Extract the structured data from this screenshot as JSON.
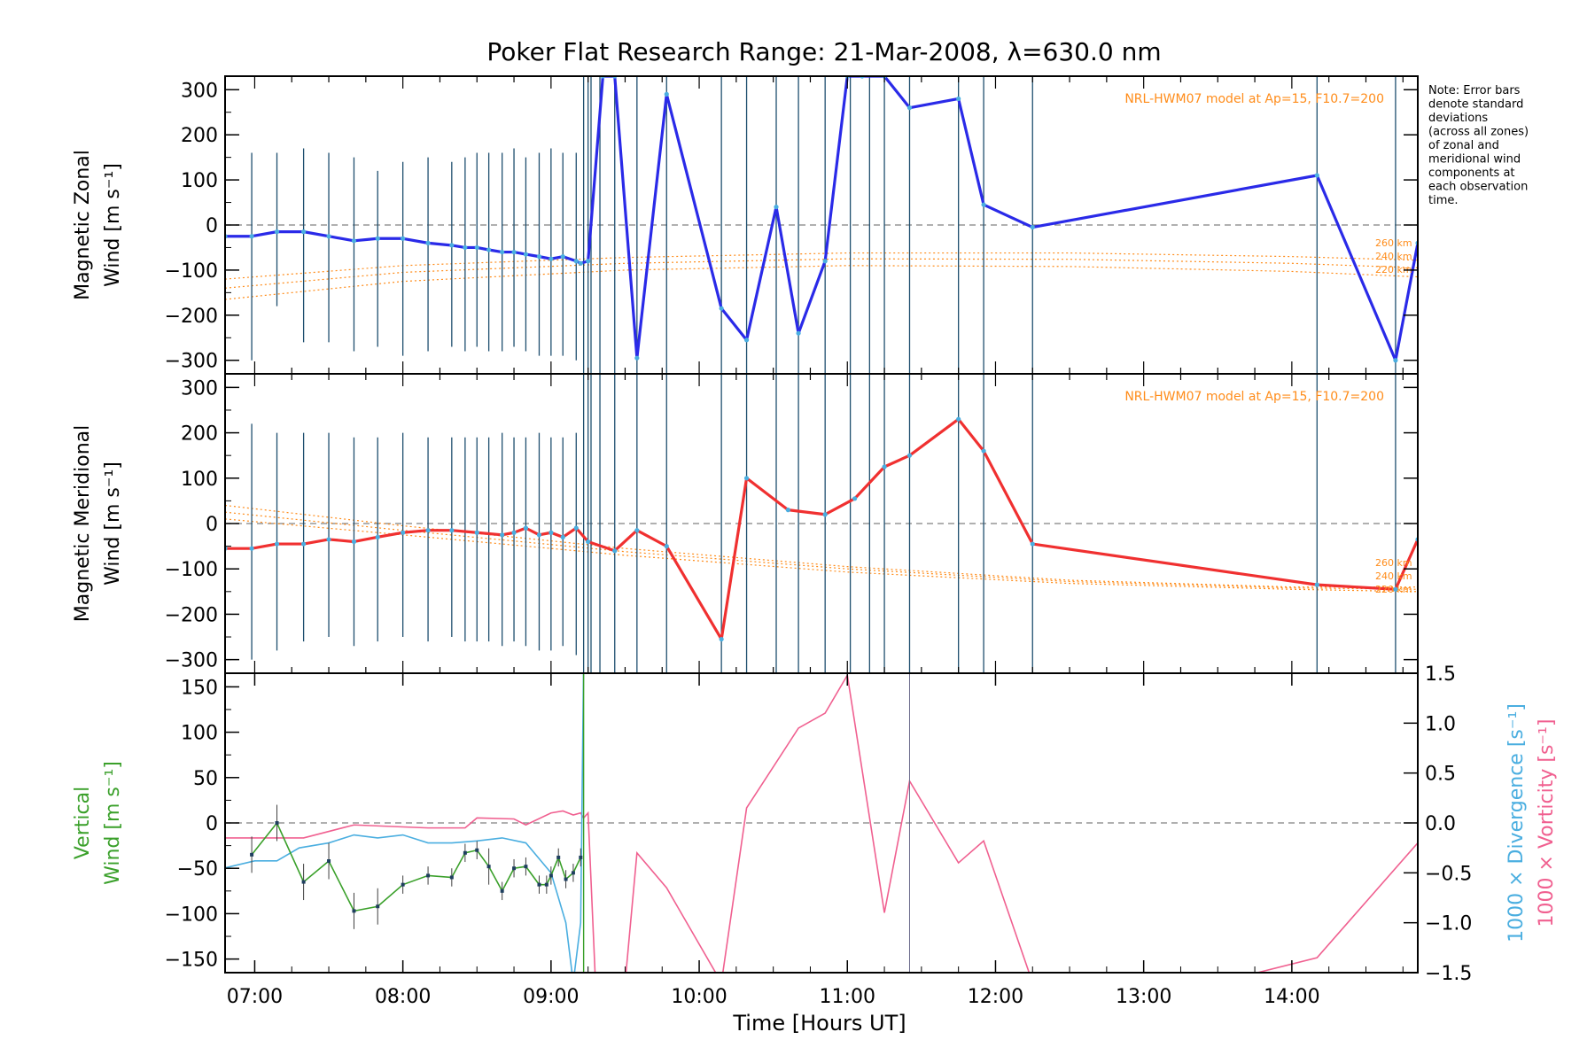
{
  "title": "Poker Flat Research Range: 21-Mar-2008, λ=630.0 nm",
  "note": [
    "Note: Error bars",
    "denote standard",
    "deviations",
    "(across all zones)",
    "of zonal and",
    "meridional wind",
    "components at",
    "each observation",
    "time."
  ],
  "colors": {
    "zonal": "#2a2ae8",
    "meridional": "#f03030",
    "model": "#ff8c1a",
    "vertical": "#3aa02a",
    "divergence": "#4aaee0",
    "vorticity": "#f06090",
    "errorbar": "#1f4f6f",
    "zero": "#808080"
  },
  "chart_data": [
    {
      "type": "line",
      "panel": "zonal",
      "ylabel": [
        "Magnetic Zonal",
        "Wind [m s⁻¹]"
      ],
      "ylim": [
        -330,
        330
      ],
      "xlim": [
        6.8,
        14.85
      ],
      "yticks": [
        -300,
        -200,
        -100,
        0,
        100,
        200,
        300
      ],
      "model_label": "NRL-HWM07 model at Ap=15, F10.7=200",
      "model_altitudes": [
        "260 km",
        "240 km",
        "220 km"
      ],
      "series": [
        {
          "x": [
            6.8,
            6.98,
            7.15,
            7.33,
            7.5,
            7.67,
            7.83,
            8.0,
            8.17,
            8.33,
            8.42,
            8.5,
            8.58,
            8.67,
            8.75,
            8.83,
            8.92,
            9.0,
            9.08,
            9.17,
            9.2,
            9.25,
            9.35,
            9.43,
            9.58,
            9.78,
            10.15,
            10.32,
            10.52,
            10.67,
            10.85,
            11.0,
            11.1,
            11.25,
            11.42,
            11.75,
            11.92,
            12.25,
            14.17,
            14.7,
            14.85
          ],
          "y": [
            -25,
            -25,
            -15,
            -15,
            -25,
            -35,
            -30,
            -30,
            -40,
            -45,
            -50,
            -50,
            -55,
            -60,
            -60,
            -65,
            -70,
            -75,
            -70,
            -80,
            -85,
            -80,
            330,
            330,
            -295,
            290,
            -185,
            -255,
            40,
            -240,
            -80,
            330,
            330,
            330,
            260,
            280,
            45,
            -5,
            110,
            -300,
            -40
          ]
        }
      ],
      "model": [
        {
          "x": [
            6.8,
            8.0,
            9.5,
            11.0,
            12.5,
            14.0,
            14.85
          ],
          "y": [
            -120,
            -90,
            -72,
            -62,
            -62,
            -70,
            -78
          ]
        },
        {
          "x": [
            6.8,
            8.0,
            9.5,
            11.0,
            12.5,
            14.0,
            14.85
          ],
          "y": [
            -140,
            -105,
            -85,
            -75,
            -76,
            -85,
            -95
          ]
        },
        {
          "x": [
            6.8,
            8.0,
            9.5,
            11.0,
            12.5,
            14.0,
            14.85
          ],
          "y": [
            -165,
            -125,
            -100,
            -90,
            -92,
            -103,
            -115
          ]
        }
      ],
      "errorbar_x": [
        6.98,
        7.15,
        7.33,
        7.5,
        7.67,
        7.83,
        8.0,
        8.17,
        8.33,
        8.42,
        8.5,
        8.58,
        8.67,
        8.75,
        8.83,
        8.92,
        9.0,
        9.08,
        9.17,
        9.22,
        9.25,
        9.27,
        9.33,
        9.43,
        9.58,
        9.78,
        10.15,
        10.32,
        10.52,
        10.67,
        10.85,
        11.02,
        11.15,
        11.25,
        11.42,
        11.75,
        11.92,
        12.25,
        14.17,
        14.7
      ],
      "errorbar_lo": [
        -300,
        -180,
        -260,
        -260,
        -280,
        -270,
        -290,
        -280,
        -270,
        -280,
        -270,
        -280,
        -280,
        -270,
        -280,
        -290,
        -290,
        -290,
        -300,
        -330,
        -330,
        -330,
        -330,
        -330,
        -330,
        -330,
        -330,
        -330,
        -330,
        -330,
        -330,
        -330,
        -330,
        -330,
        -330,
        -330,
        -330,
        -330,
        -330,
        -330
      ],
      "errorbar_hi": [
        160,
        160,
        170,
        160,
        150,
        120,
        140,
        150,
        140,
        150,
        160,
        160,
        160,
        170,
        150,
        160,
        170,
        160,
        160,
        330,
        330,
        330,
        330,
        330,
        330,
        330,
        330,
        330,
        330,
        330,
        330,
        330,
        330,
        330,
        330,
        330,
        330,
        330,
        330,
        330
      ]
    },
    {
      "type": "line",
      "panel": "meridional",
      "ylabel": [
        "Magnetic Meridional",
        "Wind [m s⁻¹]"
      ],
      "ylim": [
        -330,
        330
      ],
      "xlim": [
        6.8,
        14.85
      ],
      "yticks": [
        -300,
        -200,
        -100,
        0,
        100,
        200,
        300
      ],
      "model_label": "NRL-HWM07 model at Ap=15, F10.7=200",
      "model_altitudes": [
        "260 km",
        "240 km",
        "220 km"
      ],
      "series": [
        {
          "x": [
            6.8,
            6.98,
            7.15,
            7.33,
            7.5,
            7.67,
            7.83,
            8.0,
            8.17,
            8.33,
            8.5,
            8.67,
            8.75,
            8.83,
            8.92,
            9.0,
            9.08,
            9.17,
            9.25,
            9.43,
            9.58,
            9.78,
            10.15,
            10.32,
            10.6,
            10.85,
            11.05,
            11.25,
            11.42,
            11.75,
            11.92,
            12.25,
            14.17,
            14.7,
            14.85
          ],
          "y": [
            -55,
            -55,
            -45,
            -45,
            -35,
            -40,
            -30,
            -20,
            -15,
            -15,
            -20,
            -25,
            -20,
            -10,
            -25,
            -20,
            -30,
            -10,
            -40,
            -60,
            -15,
            -50,
            -255,
            100,
            30,
            20,
            55,
            125,
            150,
            230,
            160,
            -45,
            -135,
            -145,
            -35
          ]
        }
      ],
      "model": [
        {
          "x": [
            6.8,
            8.0,
            9.5,
            11.0,
            12.5,
            14.0,
            14.85
          ],
          "y": [
            40,
            -5,
            -55,
            -95,
            -125,
            -140,
            -140
          ]
        },
        {
          "x": [
            6.8,
            8.0,
            9.5,
            11.0,
            12.5,
            14.0,
            14.85
          ],
          "y": [
            25,
            -15,
            -62,
            -100,
            -128,
            -142,
            -145
          ]
        },
        {
          "x": [
            6.8,
            8.0,
            9.5,
            11.0,
            12.5,
            14.0,
            14.85
          ],
          "y": [
            10,
            -25,
            -70,
            -107,
            -132,
            -145,
            -150
          ]
        }
      ],
      "errorbar_x": [
        6.98,
        7.15,
        7.33,
        7.5,
        7.67,
        7.83,
        8.0,
        8.17,
        8.33,
        8.42,
        8.5,
        8.58,
        8.67,
        8.75,
        8.83,
        8.92,
        9.0,
        9.08,
        9.17,
        9.22,
        9.25,
        9.27,
        9.33,
        9.43,
        9.58,
        9.78,
        10.15,
        10.32,
        10.52,
        10.67,
        10.85,
        11.02,
        11.15,
        11.25,
        11.42,
        11.75,
        11.92,
        12.25,
        14.17,
        14.7
      ],
      "errorbar_lo": [
        -300,
        -280,
        -260,
        -250,
        -270,
        -260,
        -250,
        -260,
        -250,
        -260,
        -260,
        -260,
        -270,
        -260,
        -270,
        -280,
        -280,
        -270,
        -290,
        -330,
        -330,
        -330,
        -330,
        -330,
        -330,
        -330,
        -330,
        -330,
        -330,
        -330,
        -330,
        -330,
        -330,
        -330,
        -330,
        -330,
        -330,
        -330,
        -330,
        -330
      ],
      "errorbar_hi": [
        220,
        200,
        200,
        200,
        190,
        190,
        200,
        190,
        190,
        190,
        190,
        190,
        200,
        190,
        190,
        200,
        190,
        190,
        200,
        330,
        330,
        330,
        330,
        330,
        330,
        330,
        330,
        330,
        330,
        330,
        330,
        330,
        330,
        330,
        330,
        330,
        330,
        330,
        330,
        330
      ]
    },
    {
      "type": "line",
      "panel": "vertical",
      "ylabel_left": [
        "Vertical",
        "Wind [m s⁻¹]"
      ],
      "ylabel_right": [
        "1000 × Divergence [s⁻¹]",
        "1000 × Vorticity [s⁻¹]"
      ],
      "xlabel": "Time [Hours UT]",
      "ylim": [
        -165,
        165
      ],
      "ylim_right": [
        -1.5,
        1.5
      ],
      "xlim": [
        6.8,
        14.85
      ],
      "yticks": [
        -150,
        -100,
        -50,
        0,
        50,
        100,
        150
      ],
      "yticks_right": [
        -1.5,
        -1.0,
        -0.5,
        0.0,
        0.5,
        1.0,
        1.5
      ],
      "xticks": [
        "07:00",
        "08:00",
        "09:00",
        "10:00",
        "11:00",
        "12:00",
        "13:00",
        "14:00"
      ],
      "xtick_values": [
        7,
        8,
        9,
        10,
        11,
        12,
        13,
        14
      ],
      "series": [
        {
          "name": "vertical",
          "x": [
            6.98,
            7.15,
            7.33,
            7.5,
            7.67,
            7.83,
            8.0,
            8.17,
            8.33,
            8.42,
            8.5,
            8.58,
            8.67,
            8.75,
            8.83,
            8.92,
            8.97,
            9.0,
            9.05,
            9.1,
            9.15,
            9.2
          ],
          "y": [
            -35,
            0,
            -65,
            -42,
            -97,
            -92,
            -68,
            -58,
            -60,
            -33,
            -30,
            -48,
            -75,
            -50,
            -48,
            -68,
            -68,
            -58,
            -38,
            -62,
            -55,
            -38
          ],
          "err": [
            20,
            20,
            20,
            20,
            20,
            20,
            10,
            10,
            10,
            10,
            10,
            20,
            10,
            10,
            10,
            10,
            10,
            10,
            10,
            10,
            10,
            10
          ]
        },
        {
          "name": "divergence",
          "x": [
            6.8,
            7.0,
            7.15,
            7.3,
            7.5,
            7.67,
            7.83,
            8.0,
            8.17,
            8.33,
            8.5,
            8.67,
            8.83,
            9.0,
            9.1,
            9.15,
            9.2,
            9.22
          ],
          "y": [
            -0.45,
            -0.38,
            -0.38,
            -0.25,
            -0.2,
            -0.12,
            -0.15,
            -0.12,
            -0.2,
            -0.2,
            -0.18,
            -0.15,
            -0.2,
            -0.5,
            -1.0,
            -1.6,
            -1.0,
            1.6
          ]
        },
        {
          "name": "vorticity",
          "x": [
            6.8,
            6.98,
            7.33,
            7.67,
            8.17,
            8.42,
            8.5,
            8.75,
            8.83,
            9.0,
            9.08,
            9.15,
            9.2,
            9.22,
            9.25,
            9.3,
            9.5,
            9.58,
            9.78,
            10.15,
            10.32,
            10.67,
            10.85,
            11.0,
            11.25,
            11.42,
            11.75,
            11.92,
            12.25,
            13.5,
            14.17,
            14.85
          ],
          "y": [
            -0.15,
            -0.15,
            -0.15,
            -0.02,
            -0.05,
            -0.05,
            0.05,
            0.04,
            -0.02,
            0.1,
            0.12,
            0.08,
            0.1,
            0.05,
            0.1,
            -1.6,
            -1.6,
            -0.3,
            -0.65,
            -1.6,
            0.15,
            0.95,
            1.1,
            1.48,
            -0.9,
            0.42,
            -0.4,
            -0.18,
            -1.6,
            -1.6,
            -1.35,
            -0.2
          ]
        }
      ]
    }
  ]
}
